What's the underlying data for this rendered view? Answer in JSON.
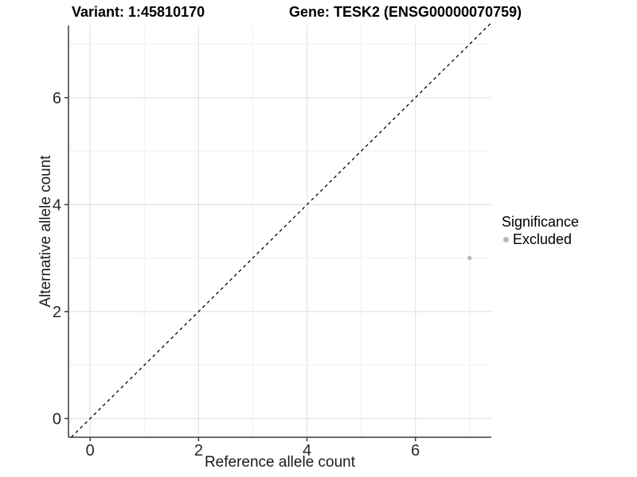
{
  "header": {
    "variant_title": "Variant: 1:45810170",
    "gene_title": "Gene: TESK2 (ENSG00000070759)"
  },
  "chart_data": {
    "type": "scatter",
    "xlabel": "Reference allele count",
    "ylabel": "Alternative allele count",
    "xlim": [
      -0.4,
      7.4
    ],
    "ylim": [
      -0.35,
      7.35
    ],
    "x_ticks": {
      "major": [
        0,
        2,
        4,
        6
      ],
      "minor": [
        1,
        3,
        5,
        7
      ]
    },
    "y_ticks": {
      "major": [
        0,
        2,
        4,
        6
      ],
      "minor": [
        1,
        3,
        5,
        7
      ]
    },
    "grid": true,
    "identity_line": {
      "style": "dashed",
      "x1": -0.35,
      "y1": -0.35,
      "x2": 7.42,
      "y2": 7.42,
      "color": "#000000"
    },
    "series": [
      {
        "name": "Excluded",
        "color": "#b8b8b8",
        "point_radius": 2.6,
        "points": [
          {
            "x": 7,
            "y": 3
          }
        ]
      }
    ],
    "legend": {
      "title": "Significance",
      "position": "right",
      "items": [
        {
          "label": "Excluded",
          "color": "#b8b8b8"
        }
      ]
    }
  },
  "colors": {
    "background": "#ffffff",
    "axis_line": "#3c3c3c",
    "tick_label": "#262626",
    "grid_major": "#e3e3e3",
    "grid_minor": "#f1f1f1"
  }
}
